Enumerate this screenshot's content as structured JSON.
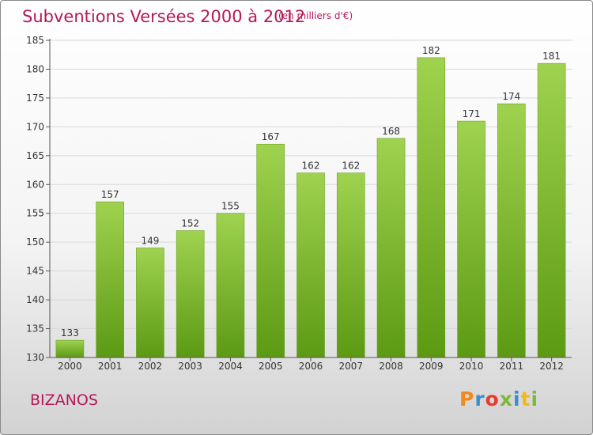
{
  "header": {
    "title": "Subventions Versées 2000 à 2012",
    "subtitle": "(en milliers d'€)"
  },
  "footer": {
    "city": "BIZANOS",
    "logo_text": "Proxiti"
  },
  "colors": {
    "title": "#b5175a",
    "bar_top": "#9fd24f",
    "bar_bottom": "#5c9a14",
    "grid": "#d8d8d8"
  },
  "chart_data": {
    "type": "bar",
    "categories": [
      "2000",
      "2001",
      "2002",
      "2003",
      "2004",
      "2005",
      "2006",
      "2007",
      "2008",
      "2009",
      "2010",
      "2011",
      "2012"
    ],
    "values": [
      133,
      157,
      149,
      152,
      155,
      167,
      162,
      162,
      168,
      182,
      171,
      174,
      181
    ],
    "title": "Subventions Versées 2000 à 2012",
    "xlabel": "",
    "ylabel": "",
    "ylim": [
      130,
      185
    ],
    "yticks": [
      130,
      135,
      140,
      145,
      150,
      155,
      160,
      165,
      170,
      175,
      180,
      185
    ],
    "grid": true
  }
}
